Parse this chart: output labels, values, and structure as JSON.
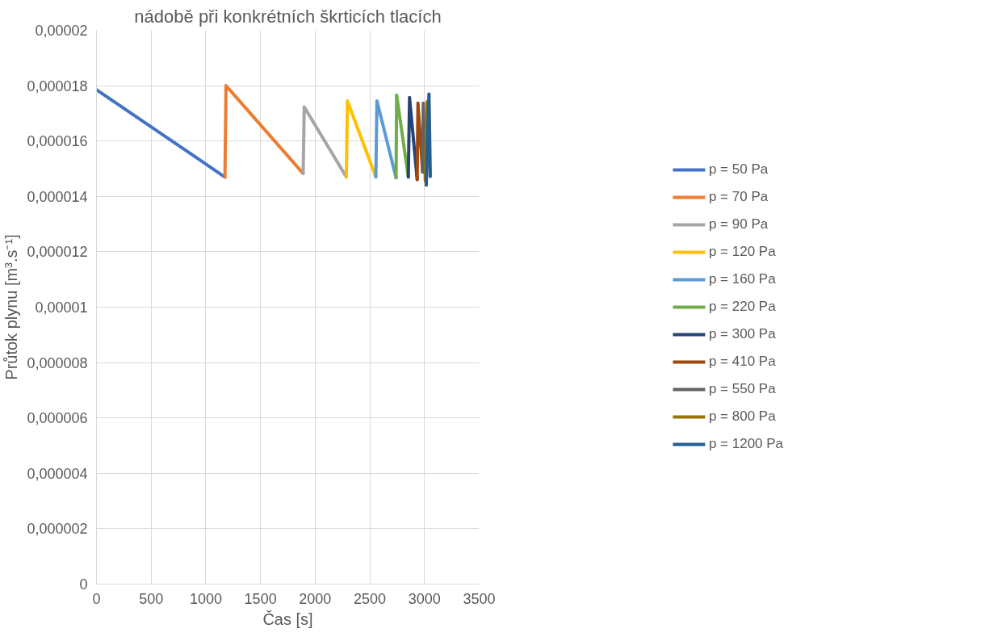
{
  "chart_data": {
    "type": "line",
    "title": "nádobě při konkrétních škrticích tlacích",
    "xlabel": "Čas [s]",
    "ylabel": "Průtok plynu [m³.s⁻¹]",
    "xlim": [
      0,
      3500
    ],
    "xticks": [
      0,
      500,
      1000,
      1500,
      2000,
      2500,
      3000,
      3500
    ],
    "ylim": [
      0,
      2e-05
    ],
    "yticks": [
      {
        "value": 0,
        "label": "0"
      },
      {
        "value": 2e-06,
        "label": "0,000002"
      },
      {
        "value": 4e-06,
        "label": "0,000004"
      },
      {
        "value": 6e-06,
        "label": "0,000006"
      },
      {
        "value": 8e-06,
        "label": "0,000008"
      },
      {
        "value": 1e-05,
        "label": "0,00001"
      },
      {
        "value": 1.2e-05,
        "label": "0,000012"
      },
      {
        "value": 1.4e-05,
        "label": "0,000014"
      },
      {
        "value": 1.6e-05,
        "label": "0,000016"
      },
      {
        "value": 1.8e-05,
        "label": "0,000018"
      },
      {
        "value": 2e-05,
        "label": "0,00002"
      }
    ],
    "grid": true,
    "legend": "right",
    "marker": "none",
    "line_style": "solid",
    "series": [
      {
        "name": "p = 50 Pa",
        "color": "#4472c4",
        "x": [
          0,
          1175
        ],
        "values": [
          1.785e-05,
          1.47e-05
        ]
      },
      {
        "name": "p = 70 Pa",
        "color": "#ed7d31",
        "x": [
          1175,
          1185,
          1890
        ],
        "values": [
          1.47e-05,
          1.8e-05,
          1.483e-05
        ]
      },
      {
        "name": "p = 90 Pa",
        "color": "#a5a5a5",
        "x": [
          1890,
          1900,
          2285
        ],
        "values": [
          1.483e-05,
          1.723e-05,
          1.47e-05
        ]
      },
      {
        "name": "p = 120 Pa",
        "color": "#ffc000",
        "x": [
          2285,
          2295,
          2555
        ],
        "values": [
          1.47e-05,
          1.745e-05,
          1.47e-05
        ]
      },
      {
        "name": "p = 160 Pa",
        "color": "#5b9bd5",
        "x": [
          2555,
          2565,
          2740
        ],
        "values": [
          1.47e-05,
          1.745e-05,
          1.467e-05
        ]
      },
      {
        "name": "p = 220 Pa",
        "color": "#70ad47",
        "x": [
          2740,
          2745,
          2852
        ],
        "values": [
          1.467e-05,
          1.766e-05,
          1.47e-05
        ]
      },
      {
        "name": "p = 300 Pa",
        "color": "#264478",
        "x": [
          2852,
          2863,
          2933
        ],
        "values": [
          1.47e-05,
          1.757e-05,
          1.461e-05
        ]
      },
      {
        "name": "p = 410 Pa",
        "color": "#9e480e",
        "x": [
          2933,
          2940,
          2983
        ],
        "values": [
          1.461e-05,
          1.737e-05,
          1.488e-05
        ]
      },
      {
        "name": "p = 550 Pa",
        "color": "#636363",
        "x": [
          2983,
          2989,
          3008
        ],
        "values": [
          1.488e-05,
          1.737e-05,
          1.457e-05
        ]
      },
      {
        "name": "p = 800 Pa",
        "color": "#997300",
        "x": [
          3008,
          3023,
          3016
        ],
        "values": [
          1.457e-05,
          1.742e-05,
          1.441e-05
        ]
      },
      {
        "name": "p = 1200 Pa",
        "color": "#255e91",
        "x": [
          3016,
          3041,
          3053
        ],
        "values": [
          1.441e-05,
          1.77e-05,
          1.472e-05
        ]
      }
    ]
  }
}
